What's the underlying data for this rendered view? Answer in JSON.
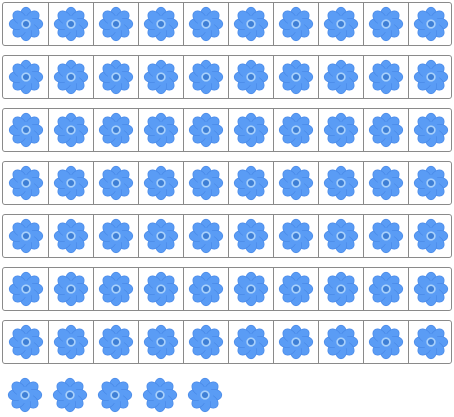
{
  "grid": {
    "columns": 10,
    "full_rows": 7,
    "last_row_count": 5,
    "total_count": 75
  },
  "icon": {
    "name": "flower-icon",
    "petal_color": "#5a9cf5",
    "petal_edge_color": "#4a8ae8",
    "center_ring_color": "#a9d1fb",
    "center_color": "#3e7fd6"
  },
  "frame": {
    "border_color": "#8a8a8a"
  }
}
